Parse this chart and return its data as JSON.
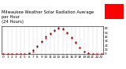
{
  "title": "Milwaukee Weather Solar Radiation Average\nper Hour\n(24 Hours)",
  "title_fontsize": 3.8,
  "xlim": [
    -0.5,
    23.5
  ],
  "ylim": [
    0,
    650
  ],
  "ytick_vals": [
    0,
    100,
    200,
    300,
    400,
    500,
    600
  ],
  "ytick_labels": [
    "0",
    "1C",
    "2C",
    "3C",
    "4C",
    "5C",
    "6C"
  ],
  "xtick_vals": [
    0,
    1,
    2,
    3,
    4,
    5,
    6,
    7,
    8,
    9,
    10,
    11,
    12,
    13,
    14,
    15,
    16,
    17,
    18,
    19,
    20,
    21,
    22,
    23
  ],
  "hours": [
    0,
    1,
    2,
    3,
    4,
    5,
    6,
    7,
    8,
    9,
    10,
    11,
    12,
    13,
    14,
    15,
    16,
    17,
    18,
    19,
    20,
    21,
    22,
    23
  ],
  "solar_red": [
    0,
    0,
    0,
    0,
    0,
    0,
    15,
    60,
    160,
    280,
    380,
    470,
    530,
    590,
    570,
    490,
    380,
    260,
    140,
    50,
    8,
    0,
    0,
    0
  ],
  "solar_black": [
    0,
    0,
    0,
    0,
    0,
    5,
    25,
    90,
    190,
    300,
    400,
    490,
    555,
    610,
    590,
    510,
    395,
    270,
    150,
    55,
    10,
    0,
    0,
    0
  ],
  "red_color": "#ff0000",
  "black_color": "#000000",
  "bg_color": "#ffffff",
  "grid_color": "#aaaaaa",
  "legend_box_color": "#ff0000",
  "marker_size": 1.5,
  "tick_fontsize": 3.0
}
